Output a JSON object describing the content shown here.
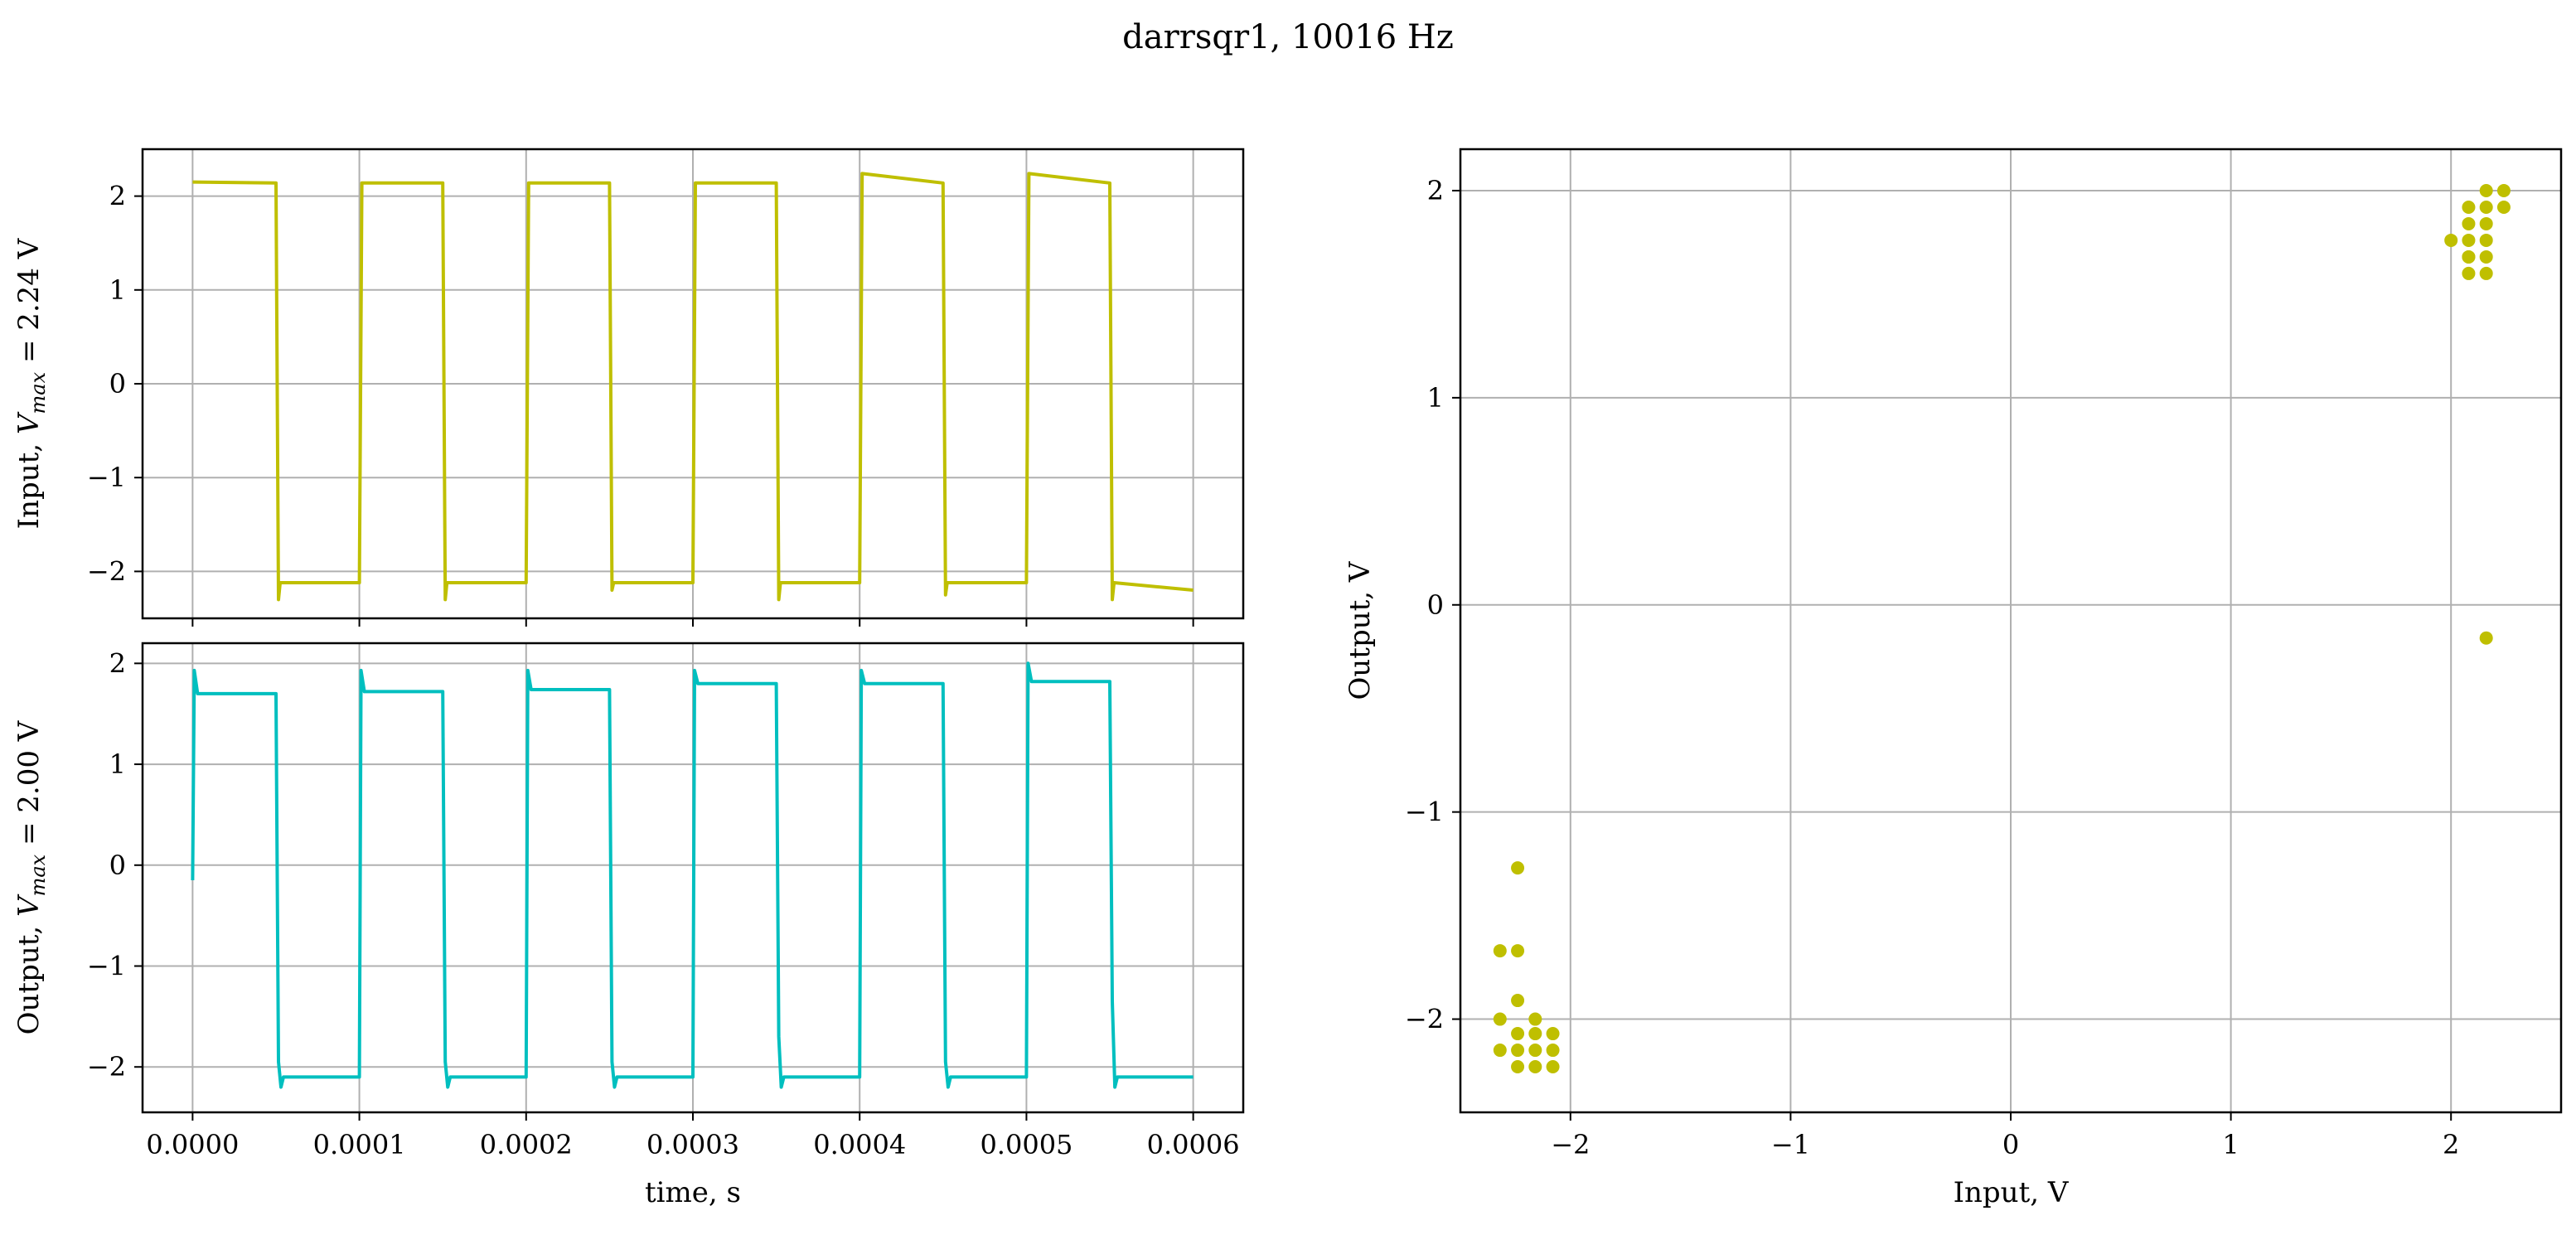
{
  "figure": {
    "title": "darrsqr1, 10016 Hz"
  },
  "colors": {
    "input": "#bfbf00",
    "output": "#00bfbf",
    "grid": "#b0b0b0",
    "axes": "#000000"
  },
  "chart_data": [
    {
      "type": "line",
      "name": "input-time-plot",
      "title": "",
      "xlabel": "",
      "ylabel": "Input, V_max = 2.24 V",
      "ylabel_parts": [
        "Input, ",
        "V",
        "max",
        " = 2.24 V"
      ],
      "xlim": [
        -3e-05,
        0.00063
      ],
      "ylim": [
        -2.5,
        2.5
      ],
      "xticks": [
        0,
        0.0001,
        0.0002,
        0.0003,
        0.0004,
        0.0005,
        0.0006
      ],
      "yticks": [
        -2,
        -1,
        0,
        1,
        2
      ],
      "ytick_labels": [
        "−2",
        "−1",
        "0",
        "1",
        "2"
      ],
      "grid": true,
      "period_s": 0.0001,
      "high_v": 2.13,
      "low_v": -2.12,
      "series": [
        {
          "x": [
            0,
            5e-05,
            5.15e-05,
            5.25e-05,
            0.0001,
            0.0001015,
            0.00015,
            0.0001515,
            0.0001525,
            0.0002,
            0.0002015,
            0.00025,
            0.0002515,
            0.0002525,
            0.0003,
            0.0003015,
            0.00035,
            0.0003515,
            0.0003525,
            0.0004,
            0.0004015,
            0.00045,
            0.0004515,
            0.0004525,
            0.0005,
            0.0005015,
            0.00055,
            0.0005515,
            0.0005525,
            0.0006
          ],
          "y": [
            2.15,
            2.14,
            -2.3,
            -2.12,
            -2.12,
            2.14,
            2.14,
            -2.3,
            -2.12,
            -2.12,
            2.14,
            2.14,
            -2.2,
            -2.12,
            -2.12,
            2.14,
            2.14,
            -2.3,
            -2.12,
            -2.12,
            2.24,
            2.14,
            -2.25,
            -2.12,
            -2.12,
            2.24,
            2.14,
            -2.3,
            -2.12,
            -2.2
          ]
        }
      ]
    },
    {
      "type": "line",
      "name": "output-time-plot",
      "title": "",
      "xlabel": "time, s",
      "ylabel": "Output, V_max = 2.00 V",
      "ylabel_parts": [
        "Output, ",
        "V",
        "max",
        " = 2.00 V"
      ],
      "xlim": [
        -3e-05,
        0.00063
      ],
      "ylim": [
        -2.45,
        2.2
      ],
      "xticks": [
        0,
        0.0001,
        0.0002,
        0.0003,
        0.0004,
        0.0005,
        0.0006
      ],
      "xtick_labels": [
        "0.0000",
        "0.0001",
        "0.0002",
        "0.0003",
        "0.0004",
        "0.0005",
        "0.0006"
      ],
      "yticks": [
        -2,
        -1,
        0,
        1,
        2
      ],
      "ytick_labels": [
        "−2",
        "−1",
        "0",
        "1",
        "2"
      ],
      "grid": true,
      "series": [
        {
          "x": [
            0,
            1e-06,
            3e-06,
            5e-05,
            5.15e-05,
            5.3e-05,
            5.45e-05,
            0.0001,
            0.000101,
            0.000103,
            0.00015,
            0.0001515,
            0.000153,
            0.0001545,
            0.0002,
            0.000201,
            0.000203,
            0.00025,
            0.0002515,
            0.000253,
            0.0002545,
            0.0003,
            0.000301,
            0.000303,
            0.00035,
            0.0003515,
            0.000353,
            0.0003545,
            0.0004,
            0.000401,
            0.000403,
            0.00045,
            0.0004515,
            0.000453,
            0.0004545,
            0.0005,
            0.000501,
            0.000503,
            0.00055,
            0.0005515,
            0.000553,
            0.0005545,
            0.0006
          ],
          "y": [
            -0.15,
            1.93,
            1.7,
            1.7,
            -1.95,
            -2.2,
            -2.1,
            -2.1,
            1.93,
            1.72,
            1.72,
            -1.95,
            -2.2,
            -2.1,
            -2.1,
            1.93,
            1.74,
            1.74,
            -1.95,
            -2.2,
            -2.1,
            -2.1,
            1.93,
            1.8,
            1.8,
            -1.7,
            -2.2,
            -2.1,
            -2.1,
            1.93,
            1.8,
            1.8,
            -1.95,
            -2.2,
            -2.1,
            -2.1,
            2.0,
            1.82,
            1.82,
            -1.35,
            -2.2,
            -2.1,
            -2.1
          ]
        }
      ]
    },
    {
      "type": "scatter",
      "name": "input-output-scatter",
      "title": "",
      "xlabel": "Input, V",
      "ylabel": "Output, V",
      "xlim": [
        -2.5,
        2.5
      ],
      "ylim": [
        -2.45,
        2.2
      ],
      "xticks": [
        -2,
        -1,
        0,
        1,
        2
      ],
      "xtick_labels": [
        "−2",
        "−1",
        "0",
        "1",
        "2"
      ],
      "yticks": [
        -2,
        -1,
        0,
        1,
        2
      ],
      "ytick_labels": [
        "−2",
        "−1",
        "0",
        "1",
        "2"
      ],
      "grid": true,
      "series": [
        {
          "x": [
            2.16,
            2.16,
            2.16,
            2.16,
            2.16,
            2.16,
            2.24,
            2.24,
            2.08,
            2.08,
            2.08,
            2.08,
            2.08,
            2.08,
            2.0,
            2.16
          ],
          "y": [
            2.0,
            1.92,
            1.84,
            1.76,
            1.68,
            1.6,
            2.0,
            1.92,
            1.92,
            1.84,
            1.76,
            1.68,
            1.6,
            1.68,
            1.76,
            -0.16
          ],
          "x2": [
            -2.24,
            -2.32,
            -2.24,
            -2.24,
            -2.32,
            -2.16,
            -2.24,
            -2.08,
            -2.16,
            -2.24,
            -2.32,
            -2.08,
            -2.16,
            -2.24,
            -2.08,
            -2.16
          ],
          "y2": [
            -1.27,
            -1.67,
            -1.67,
            -1.91,
            -2.0,
            -2.0,
            -2.07,
            -2.07,
            -2.07,
            -2.15,
            -2.15,
            -2.15,
            -2.15,
            -2.23,
            -2.23,
            -2.23
          ]
        }
      ]
    }
  ]
}
